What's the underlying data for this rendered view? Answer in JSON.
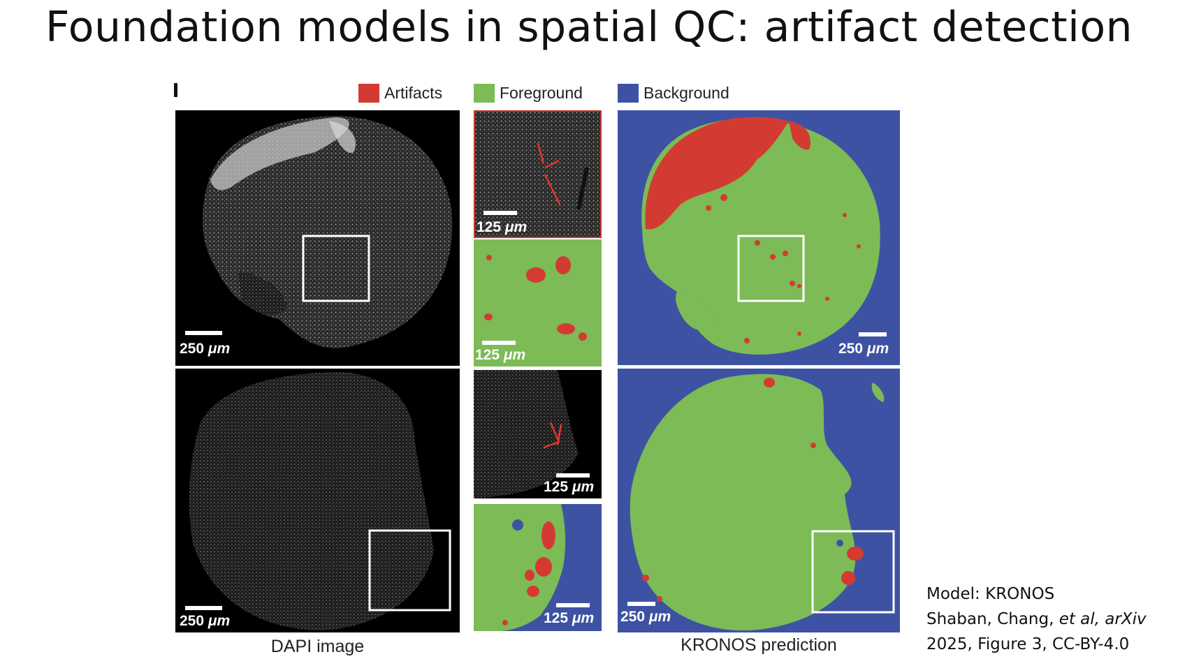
{
  "slide_title": "Foundation models in spatial QC: artifact detection",
  "figure": {
    "panel_letter": "I",
    "legend": [
      {
        "label": "Artifacts",
        "color": "#d33b32"
      },
      {
        "label": "Foreground",
        "color": "#7cbb56"
      },
      {
        "label": "Background",
        "color": "#3e52a3"
      }
    ],
    "scale_bars": {
      "large": {
        "value": "250",
        "unit": "μm"
      },
      "small": {
        "value": "125",
        "unit": "μm"
      }
    },
    "captions": {
      "left": "DAPI image",
      "right": "KRONOS prediction"
    }
  },
  "citation": {
    "line1": "Model: KRONOS",
    "line2_prefix": "Shaban, Chang, ",
    "line2_italic": "et al, arXiv",
    "line3": "2025, Figure 3, CC-BY-4.0"
  }
}
